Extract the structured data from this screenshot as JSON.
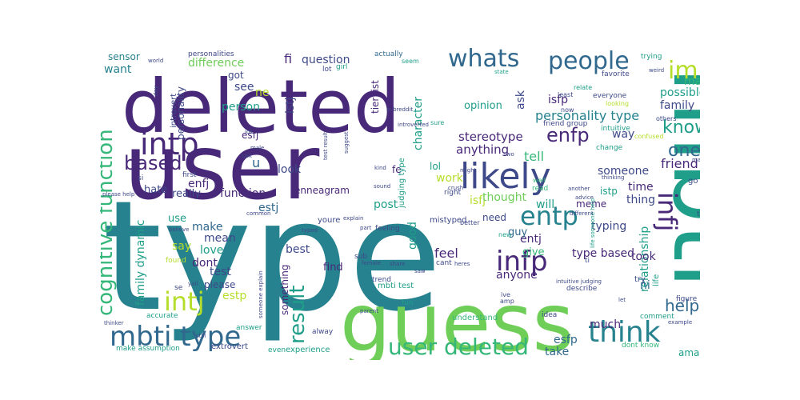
{
  "colors": {
    "dark_purple": "#482878",
    "purple": "#3e4989",
    "blue": "#31688e",
    "teal": "#26828e",
    "sea": "#1f9e89",
    "green": "#35b779",
    "light_green": "#6ece58",
    "yellow_green": "#b5de2b",
    "yellow": "#fde725"
  },
  "words": [
    {
      "id": "type-large",
      "text": "type",
      "color": "teal"
    },
    {
      "id": "user-large",
      "text": "user",
      "color": "dark_purple"
    },
    {
      "id": "deleted-large",
      "text": "deleted",
      "color": "dark_purple"
    },
    {
      "id": "mbti-vertical",
      "text": "mbti",
      "color": "sea"
    },
    {
      "id": "guess",
      "text": "guess",
      "color": "light_green"
    },
    {
      "id": "likely",
      "text": "likely",
      "color": "purple"
    },
    {
      "id": "intp",
      "text": "intp",
      "color": "dark_purple"
    },
    {
      "id": "whats",
      "text": "whats",
      "color": "blue"
    },
    {
      "id": "people",
      "text": "people",
      "color": "blue"
    },
    {
      "id": "im",
      "text": "im",
      "color": "yellow_green"
    },
    {
      "id": "know",
      "text": "know",
      "color": "sea"
    },
    {
      "id": "one",
      "text": "one",
      "color": "blue"
    },
    {
      "id": "enfp",
      "text": "enfp",
      "color": "dark_purple"
    },
    {
      "id": "entp",
      "text": "entp",
      "color": "teal"
    },
    {
      "id": "infp",
      "text": "infp",
      "color": "dark_purple"
    },
    {
      "id": "infj",
      "text": "infj",
      "color": "dark_purple"
    },
    {
      "id": "think",
      "text": "think",
      "color": "teal"
    },
    {
      "id": "help",
      "text": "help",
      "color": "blue"
    },
    {
      "id": "mbti-type",
      "text": "mbti type",
      "color": "blue"
    },
    {
      "id": "user-deleted",
      "text": "user deleted",
      "color": "green"
    },
    {
      "id": "intj",
      "text": "intj",
      "color": "yellow_green"
    },
    {
      "id": "cognitive-function",
      "text": "cognitive function",
      "color": "green"
    },
    {
      "id": "result",
      "text": "result",
      "color": "sea"
    },
    {
      "id": "based",
      "text": "based",
      "color": "dark_purple"
    },
    {
      "id": "personality-type",
      "text": "personality type",
      "color": "teal"
    },
    {
      "id": "stereotype",
      "text": "stereotype",
      "color": "dark_purple"
    },
    {
      "id": "anything",
      "text": "anything",
      "color": "dark_purple"
    },
    {
      "id": "tell",
      "text": "tell",
      "color": "green"
    },
    {
      "id": "someone",
      "text": "someone",
      "color": "purple"
    },
    {
      "id": "friend",
      "text": "friend",
      "color": "dark_purple"
    },
    {
      "id": "made",
      "text": "made",
      "color": "green"
    },
    {
      "id": "possible",
      "text": "possible",
      "color": "sea"
    },
    {
      "id": "family",
      "text": "family",
      "color": "purple"
    },
    {
      "id": "fi",
      "text": "fi",
      "color": "dark_purple"
    },
    {
      "id": "question",
      "text": "question",
      "color": "purple"
    },
    {
      "id": "difference",
      "text": "difference",
      "color": "light_green"
    },
    {
      "id": "sensor",
      "text": "sensor",
      "color": "teal"
    },
    {
      "id": "want",
      "text": "want",
      "color": "teal"
    },
    {
      "id": "personalities",
      "text": "personalities",
      "color": "purple"
    },
    {
      "id": "got",
      "text": "got",
      "color": "purple"
    },
    {
      "id": "see",
      "text": "see",
      "color": "purple"
    },
    {
      "id": "ne",
      "text": "ne",
      "color": "yellow_green"
    },
    {
      "id": "person",
      "text": "person",
      "color": "sea"
    },
    {
      "id": "personality",
      "text": "personality",
      "color": "purple"
    },
    {
      "id": "introvert",
      "text": "introvert",
      "color": "purple"
    },
    {
      "id": "istj",
      "text": "istj",
      "color": "purple"
    },
    {
      "id": "tier-list",
      "text": "tier list",
      "color": "dark_purple"
    },
    {
      "id": "character",
      "text": "character",
      "color": "sea"
    },
    {
      "id": "ask",
      "text": "ask",
      "color": "purple"
    },
    {
      "id": "isfp",
      "text": "isfp",
      "color": "dark_purple"
    },
    {
      "id": "opinion",
      "text": "opinion",
      "color": "sea"
    },
    {
      "id": "esfj",
      "text": "esfj",
      "color": "dark_purple"
    },
    {
      "id": "u",
      "text": "u",
      "color": "blue"
    },
    {
      "id": "look",
      "text": "look",
      "color": "purple"
    },
    {
      "id": "enfj",
      "text": "enfj",
      "color": "dark_purple"
    },
    {
      "id": "hate",
      "text": "hate",
      "color": "purple"
    },
    {
      "id": "really",
      "text": "really",
      "color": "purple"
    },
    {
      "id": "function",
      "text": "function",
      "color": "dark_purple"
    },
    {
      "id": "enneagram",
      "text": "enneagram",
      "color": "dark_purple"
    },
    {
      "id": "estj",
      "text": "estj",
      "color": "blue"
    },
    {
      "id": "make",
      "text": "make",
      "color": "blue"
    },
    {
      "id": "mean",
      "text": "mean",
      "color": "purple"
    },
    {
      "id": "say",
      "text": "say",
      "color": "yellow_green"
    },
    {
      "id": "love",
      "text": "love",
      "color": "sea"
    },
    {
      "id": "use",
      "text": "use",
      "color": "sea"
    },
    {
      "id": "family-dynamic",
      "text": "family dynamic",
      "color": "sea"
    },
    {
      "id": "dont",
      "text": "dont",
      "color": "dark_purple"
    },
    {
      "id": "test",
      "text": "test",
      "color": "purple"
    },
    {
      "id": "please",
      "text": "please",
      "color": "purple"
    },
    {
      "id": "estp",
      "text": "estp",
      "color": "yellow_green"
    },
    {
      "id": "best",
      "text": "best",
      "color": "purple"
    },
    {
      "id": "find",
      "text": "find",
      "color": "dark_purple"
    },
    {
      "id": "something",
      "text": "something",
      "color": "dark_purple"
    },
    {
      "id": "post",
      "text": "post",
      "color": "sea"
    },
    {
      "id": "good",
      "text": "good",
      "color": "sea"
    },
    {
      "id": "work",
      "text": "work",
      "color": "yellow_green"
    },
    {
      "id": "lol",
      "text": "lol",
      "color": "sea"
    },
    {
      "id": "fe",
      "text": "fe",
      "color": "dark_purple"
    },
    {
      "id": "isfj",
      "text": "isfj",
      "color": "yellow_green"
    },
    {
      "id": "thought",
      "text": "thought",
      "color": "light_green"
    },
    {
      "id": "need",
      "text": "need",
      "color": "purple"
    },
    {
      "id": "entj",
      "text": "entj",
      "color": "dark_purple"
    },
    {
      "id": "give",
      "text": "give",
      "color": "green"
    },
    {
      "id": "feel",
      "text": "feel",
      "color": "dark_purple"
    },
    {
      "id": "anyone",
      "text": "anyone",
      "color": "dark_purple"
    },
    {
      "id": "guy",
      "text": "guy",
      "color": "blue"
    },
    {
      "id": "will",
      "text": "will",
      "color": "sea"
    },
    {
      "id": "way",
      "text": "way",
      "color": "purple"
    },
    {
      "id": "time",
      "text": "time",
      "color": "dark_purple"
    },
    {
      "id": "thing",
      "text": "thing",
      "color": "purple"
    },
    {
      "id": "istp",
      "text": "istp",
      "color": "sea"
    },
    {
      "id": "meme",
      "text": "meme",
      "color": "dark_purple"
    },
    {
      "id": "typing",
      "text": "typing",
      "color": "purple"
    },
    {
      "id": "relationship",
      "text": "relationship",
      "color": "sea"
    },
    {
      "id": "type-based",
      "text": "type based",
      "color": "dark_purple"
    },
    {
      "id": "took",
      "text": "took",
      "color": "dark_purple"
    },
    {
      "id": "ni",
      "text": "ni",
      "color": "blue"
    },
    {
      "id": "much",
      "text": "much",
      "color": "dark_purple"
    },
    {
      "id": "esfp",
      "text": "esfp",
      "color": "blue"
    },
    {
      "id": "take",
      "text": "take",
      "color": "blue"
    },
    {
      "id": "ama",
      "text": "ama",
      "color": "sea"
    },
    {
      "id": "life",
      "text": "life",
      "color": "sea"
    },
    {
      "id": "mistyped",
      "text": "mistyped",
      "color": "purple"
    },
    {
      "id": "mbti-test",
      "text": "mbti test",
      "color": "sea"
    },
    {
      "id": "understand",
      "text": "understand",
      "color": "green"
    },
    {
      "id": "experience",
      "text": "experience",
      "color": "sea"
    },
    {
      "id": "extrovert",
      "text": "extrovert",
      "color": "purple"
    },
    {
      "id": "make-assumption",
      "text": "make assumption",
      "color": "sea"
    },
    {
      "id": "dont-know",
      "text": "dont know",
      "color": "green"
    },
    {
      "id": "youre",
      "text": "youre",
      "color": "purple"
    },
    {
      "id": "accurate",
      "text": "accurate",
      "color": "sea"
    },
    {
      "id": "answer",
      "text": "answer",
      "color": "sea"
    },
    {
      "id": "always",
      "text": "alway",
      "color": "purple"
    },
    {
      "id": "even",
      "text": "even",
      "color": "sea"
    },
    {
      "id": "idea",
      "text": "idea",
      "color": "purple"
    },
    {
      "id": "comment",
      "text": "comment",
      "color": "sea"
    },
    {
      "id": "describe",
      "text": "describe",
      "color": "purple"
    },
    {
      "id": "figure",
      "text": "figure",
      "color": "purple"
    },
    {
      "id": "try",
      "text": "try",
      "color": "purple"
    },
    {
      "id": "true",
      "text": "true",
      "color": "purple"
    },
    {
      "id": "go",
      "text": "go",
      "color": "purple"
    },
    {
      "id": "change",
      "text": "change",
      "color": "sea"
    },
    {
      "id": "intuitive",
      "text": "intuitive",
      "color": "sea"
    },
    {
      "id": "everyone",
      "text": "everyone",
      "color": "purple"
    },
    {
      "id": "looking",
      "text": "looking",
      "color": "yellow_green"
    },
    {
      "id": "favorite",
      "text": "favorite",
      "color": "purple"
    },
    {
      "id": "trying",
      "text": "trying",
      "color": "sea"
    },
    {
      "id": "actually",
      "text": "actually",
      "color": "blue"
    },
    {
      "id": "seem",
      "text": "seem",
      "color": "sea"
    },
    {
      "id": "lot",
      "text": "lot",
      "color": "purple"
    },
    {
      "id": "girl",
      "text": "girl",
      "color": "sea"
    },
    {
      "id": "subreddit",
      "text": "subreddit",
      "color": "purple"
    },
    {
      "id": "introverted",
      "text": "introverted",
      "color": "purple"
    },
    {
      "id": "sure",
      "text": "sure",
      "color": "sea"
    },
    {
      "id": "relate",
      "text": "relate",
      "color": "sea"
    },
    {
      "id": "least",
      "text": "least",
      "color": "purple"
    },
    {
      "id": "friend-group",
      "text": "friend group",
      "color": "purple"
    },
    {
      "id": "now",
      "text": "now",
      "color": "purple"
    },
    {
      "id": "others",
      "text": "others",
      "color": "purple"
    },
    {
      "id": "confused",
      "text": "confused",
      "color": "yellow_green"
    },
    {
      "id": "judging-type",
      "text": "judging type",
      "color": "sea"
    },
    {
      "id": "suggest",
      "text": "suggest",
      "color": "purple"
    },
    {
      "id": "test-result",
      "text": "test result",
      "color": "purple"
    },
    {
      "id": "sound",
      "text": "sound",
      "color": "purple"
    },
    {
      "id": "crush",
      "text": "crush",
      "color": "purple"
    },
    {
      "id": "read",
      "text": "read",
      "color": "green"
    },
    {
      "id": "well",
      "text": "well",
      "color": "green"
    },
    {
      "id": "might",
      "text": "might",
      "color": "purple"
    },
    {
      "id": "right",
      "text": "right",
      "color": "purple"
    },
    {
      "id": "feeling",
      "text": "feeling",
      "color": "purple"
    },
    {
      "id": "trend",
      "text": "trend",
      "color": "purple"
    },
    {
      "id": "better",
      "text": "better",
      "color": "purple"
    },
    {
      "id": "another",
      "text": "another",
      "color": "purple"
    },
    {
      "id": "thinking",
      "text": "thinking",
      "color": "purple"
    },
    {
      "id": "advice",
      "text": "advice",
      "color": "purple"
    },
    {
      "id": "life-someone-help",
      "text": "life someone help",
      "color": "sea"
    },
    {
      "id": "first",
      "text": "first",
      "color": "purple"
    },
    {
      "id": "explain",
      "text": "explain",
      "color": "purple"
    },
    {
      "id": "part",
      "text": "part",
      "color": "purple"
    },
    {
      "id": "common",
      "text": "common",
      "color": "purple"
    },
    {
      "id": "female",
      "text": "female",
      "color": "purple"
    },
    {
      "id": "share",
      "text": "share",
      "color": "purple"
    },
    {
      "id": "cant",
      "text": "cant",
      "color": "purple"
    },
    {
      "id": "heres",
      "text": "heres",
      "color": "purple"
    },
    {
      "id": "fun",
      "text": "fun",
      "color": "sea"
    },
    {
      "id": "amp",
      "text": "amp",
      "color": "purple"
    },
    {
      "id": "ive",
      "text": "ive",
      "color": "purple"
    },
    {
      "id": "intuitive-judging",
      "text": "intuitive judging",
      "color": "purple"
    },
    {
      "id": "thinker",
      "text": "thinker",
      "color": "purple"
    },
    {
      "id": "still",
      "text": "still",
      "color": "purple"
    },
    {
      "id": "parent",
      "text": "parent",
      "color": "purple"
    },
    {
      "id": "example",
      "text": "example",
      "color": "purple"
    },
    {
      "id": "found",
      "text": "found",
      "color": "yellow_green"
    },
    {
      "id": "believe",
      "text": "believe",
      "color": "purple"
    },
    {
      "id": "sub",
      "text": "sub",
      "color": "purple"
    },
    {
      "id": "world",
      "text": "world",
      "color": "purple"
    },
    {
      "id": "day",
      "text": "day",
      "color": "purple"
    },
    {
      "id": "idk",
      "text": "idk",
      "color": "purple"
    },
    {
      "id": "talk",
      "text": "talk",
      "color": "purple"
    },
    {
      "id": "kind",
      "text": "kind",
      "color": "purple"
    },
    {
      "id": "state",
      "text": "state",
      "color": "sea"
    },
    {
      "id": "weird",
      "text": "weird",
      "color": "purple"
    },
    {
      "id": "two",
      "text": "two",
      "color": "purple"
    },
    {
      "id": "si",
      "text": "si",
      "color": "purple"
    },
    {
      "id": "se",
      "text": "se",
      "color": "purple"
    },
    {
      "id": "ti",
      "text": "ti",
      "color": "purple"
    },
    {
      "id": "different",
      "text": "different",
      "color": "purple"
    },
    {
      "id": "new",
      "text": "new",
      "color": "sea"
    },
    {
      "id": "please-help",
      "text": "please help",
      "color": "purple"
    },
    {
      "id": "typed",
      "text": "typed",
      "color": "purple"
    },
    {
      "id": "saw",
      "text": "saw",
      "color": "purple"
    },
    {
      "id": "let",
      "text": "let",
      "color": "purple"
    },
    {
      "id": "mad",
      "text": "mad",
      "color": "purple"
    },
    {
      "id": "male",
      "text": "male",
      "color": "purple"
    },
    {
      "id": "yall",
      "text": "yall",
      "color": "purple"
    },
    {
      "id": "someone-explain",
      "text": "someone explain",
      "color": "purple"
    }
  ]
}
